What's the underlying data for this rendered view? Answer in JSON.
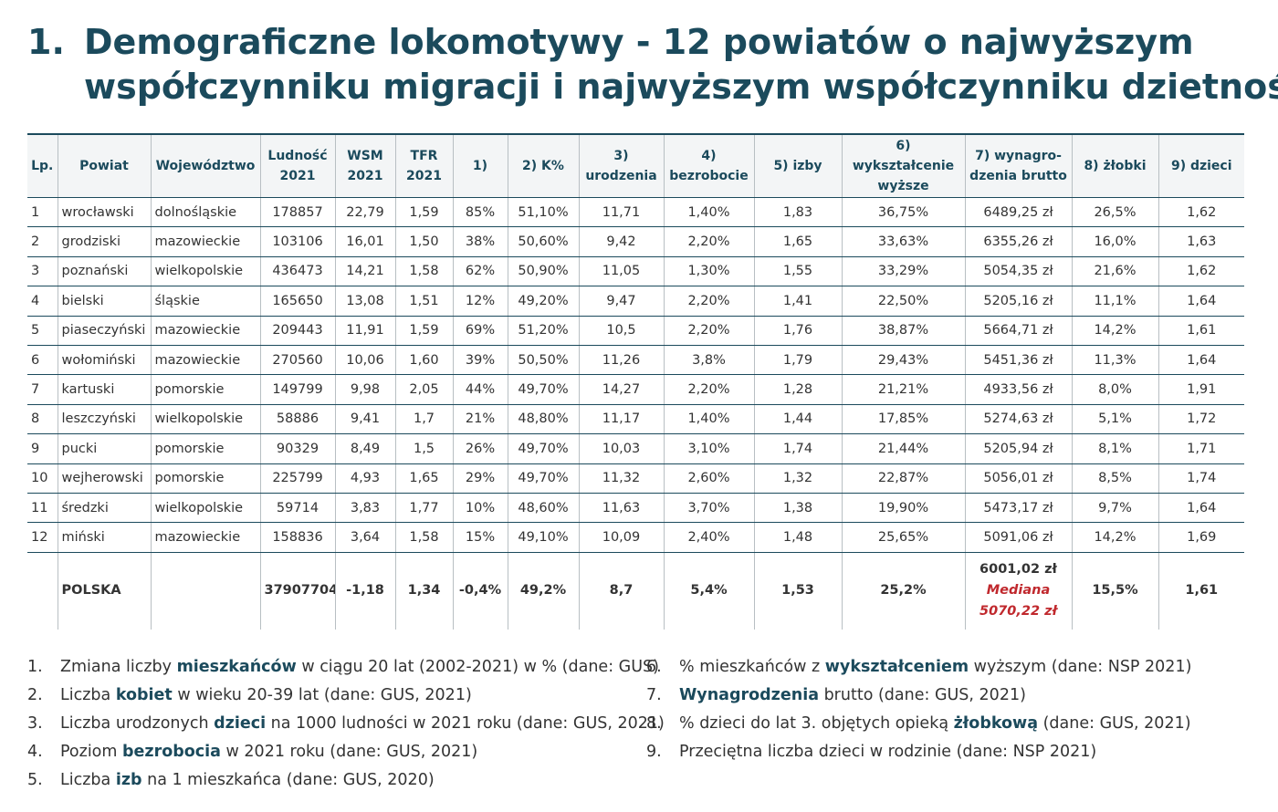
{
  "header": {
    "number": "1.",
    "title_lines": [
      "Demograficzne lokomotywy - 12 powiatów o najwyższym",
      "współczynniku migracji i najwyższym współczynniku dzietności"
    ]
  },
  "table": {
    "columns": [
      [
        "Lp."
      ],
      [
        "Powiat"
      ],
      [
        "Województwo"
      ],
      [
        "Ludność",
        "2021"
      ],
      [
        "WSM",
        "2021"
      ],
      [
        "TFR",
        "2021"
      ],
      [
        "1)"
      ],
      [
        "2) K%"
      ],
      [
        "3)",
        "urodzenia"
      ],
      [
        "4)",
        "bezrobocie"
      ],
      [
        "5) izby"
      ],
      [
        "6) wykształcenie",
        "wyższe"
      ],
      [
        "7) wynagro-",
        "dzenia brutto"
      ],
      [
        "8) żłobki"
      ],
      [
        "9) dzieci"
      ]
    ],
    "rows": [
      [
        "1",
        "wrocławski",
        "dolnośląskie",
        "178857",
        "22,79",
        "1,59",
        "85%",
        "51,10%",
        "11,71",
        "1,40%",
        "1,83",
        "36,75%",
        "6489,25 zł",
        "26,5%",
        "1,62"
      ],
      [
        "2",
        "grodziski",
        "mazowieckie",
        "103106",
        "16,01",
        "1,50",
        "38%",
        "50,60%",
        "9,42",
        "2,20%",
        "1,65",
        "33,63%",
        "6355,26 zł",
        "16,0%",
        "1,63"
      ],
      [
        "3",
        "poznański",
        "wielkopolskie",
        "436473",
        "14,21",
        "1,58",
        "62%",
        "50,90%",
        "11,05",
        "1,30%",
        "1,55",
        "33,29%",
        "5054,35 zł",
        "21,6%",
        "1,62"
      ],
      [
        "4",
        "bielski",
        "śląskie",
        "165650",
        "13,08",
        "1,51",
        "12%",
        "49,20%",
        "9,47",
        "2,20%",
        "1,41",
        "22,50%",
        "5205,16 zł",
        "11,1%",
        "1,64"
      ],
      [
        "5",
        "piaseczyński",
        "mazowieckie",
        "209443",
        "11,91",
        "1,59",
        "69%",
        "51,20%",
        "10,5",
        "2,20%",
        "1,76",
        "38,87%",
        "5664,71 zł",
        "14,2%",
        "1,61"
      ],
      [
        "6",
        "wołomiński",
        "mazowieckie",
        "270560",
        "10,06",
        "1,60",
        "39%",
        "50,50%",
        "11,26",
        "3,8%",
        "1,79",
        "29,43%",
        "5451,36 zł",
        "11,3%",
        "1,64"
      ],
      [
        "7",
        "kartuski",
        "pomorskie",
        "149799",
        "9,98",
        "2,05",
        "44%",
        "49,70%",
        "14,27",
        "2,20%",
        "1,28",
        "21,21%",
        "4933,56 zł",
        "8,0%",
        "1,91"
      ],
      [
        "8",
        "leszczyński",
        "wielkopolskie",
        "58886",
        "9,41",
        "1,7",
        "21%",
        "48,80%",
        "11,17",
        "1,40%",
        "1,44",
        "17,85%",
        "5274,63 zł",
        "5,1%",
        "1,72"
      ],
      [
        "9",
        "pucki",
        "pomorskie",
        "90329",
        "8,49",
        "1,5",
        "26%",
        "49,70%",
        "10,03",
        "3,10%",
        "1,74",
        "21,44%",
        "5205,94 zł",
        "8,1%",
        "1,71"
      ],
      [
        "10",
        "wejherowski",
        "pomorskie",
        "225799",
        "4,93",
        "1,65",
        "29%",
        "49,70%",
        "11,32",
        "2,60%",
        "1,32",
        "22,87%",
        "5056,01 zł",
        "8,5%",
        "1,74"
      ],
      [
        "11",
        "średzki",
        "wielkopolskie",
        "59714",
        "3,83",
        "1,77",
        "10%",
        "48,60%",
        "11,63",
        "3,70%",
        "1,38",
        "19,90%",
        "5473,17 zł",
        "9,7%",
        "1,64"
      ],
      [
        "12",
        "miński",
        "mazowieckie",
        "158836",
        "3,64",
        "1,58",
        "15%",
        "49,10%",
        "10,09",
        "2,40%",
        "1,48",
        "25,65%",
        "5091,06 zł",
        "14,2%",
        "1,69"
      ]
    ],
    "total": {
      "name": "POLSKA",
      "values_before": [
        "37907704",
        "-1,18",
        "1,34",
        "-0,4%",
        "49,2%",
        "8,7",
        "5,4%",
        "1,53",
        "25,2%"
      ],
      "wage": "6001,02 zł",
      "median_label": "Mediana",
      "median": "5070,22 zł",
      "values_after": [
        "15,5%",
        "1,61"
      ]
    }
  },
  "footnotes": [
    {
      "number": "1.",
      "parts": [
        {
          "text": "Zmiana liczby "
        },
        {
          "text": "mieszkańców",
          "bold": true
        },
        {
          "text": " w ciągu 20 lat (2002-2021) w % (dane: GUS)"
        }
      ]
    },
    {
      "number": "2.",
      "parts": [
        {
          "text": "Liczba "
        },
        {
          "text": "kobiet",
          "bold": true
        },
        {
          "text": " w wieku 20-39 lat (dane: GUS, 2021)"
        }
      ]
    },
    {
      "number": "3.",
      "parts": [
        {
          "text": "Liczba urodzonych "
        },
        {
          "text": "dzieci",
          "bold": true
        },
        {
          "text": " na 1000 ludności w 2021 roku (dane: GUS, 2021)"
        }
      ]
    },
    {
      "number": "4.",
      "parts": [
        {
          "text": "Poziom "
        },
        {
          "text": "bezrobocia",
          "bold": true
        },
        {
          "text": " w 2021 roku (dane: GUS, 2021)"
        }
      ]
    },
    {
      "number": "5.",
      "parts": [
        {
          "text": "Liczba "
        },
        {
          "text": "izb",
          "bold": true
        },
        {
          "text": " na 1 mieszkańca (dane: GUS, 2020)"
        }
      ]
    },
    {
      "number": "6.",
      "parts": [
        {
          "text": "% mieszkańców z "
        },
        {
          "text": "wykształceniem",
          "bold": true
        },
        {
          "text": " wyższym (dane: NSP 2021)"
        }
      ]
    },
    {
      "number": "7.",
      "parts": [
        {
          "text": "Wynagrodzenia",
          "bold": true
        },
        {
          "text": " brutto (dane: GUS, 2021)"
        }
      ]
    },
    {
      "number": "8.",
      "parts": [
        {
          "text": "% dzieci do lat 3. objętych opieką "
        },
        {
          "text": "żłobkową",
          "bold": true
        },
        {
          "text": " (dane: GUS, 2021)"
        }
      ]
    },
    {
      "number": "9.",
      "parts": [
        {
          "text": "Przeciętna liczba dzieci w rodzinie (dane: NSP 2021)"
        }
      ]
    }
  ]
}
